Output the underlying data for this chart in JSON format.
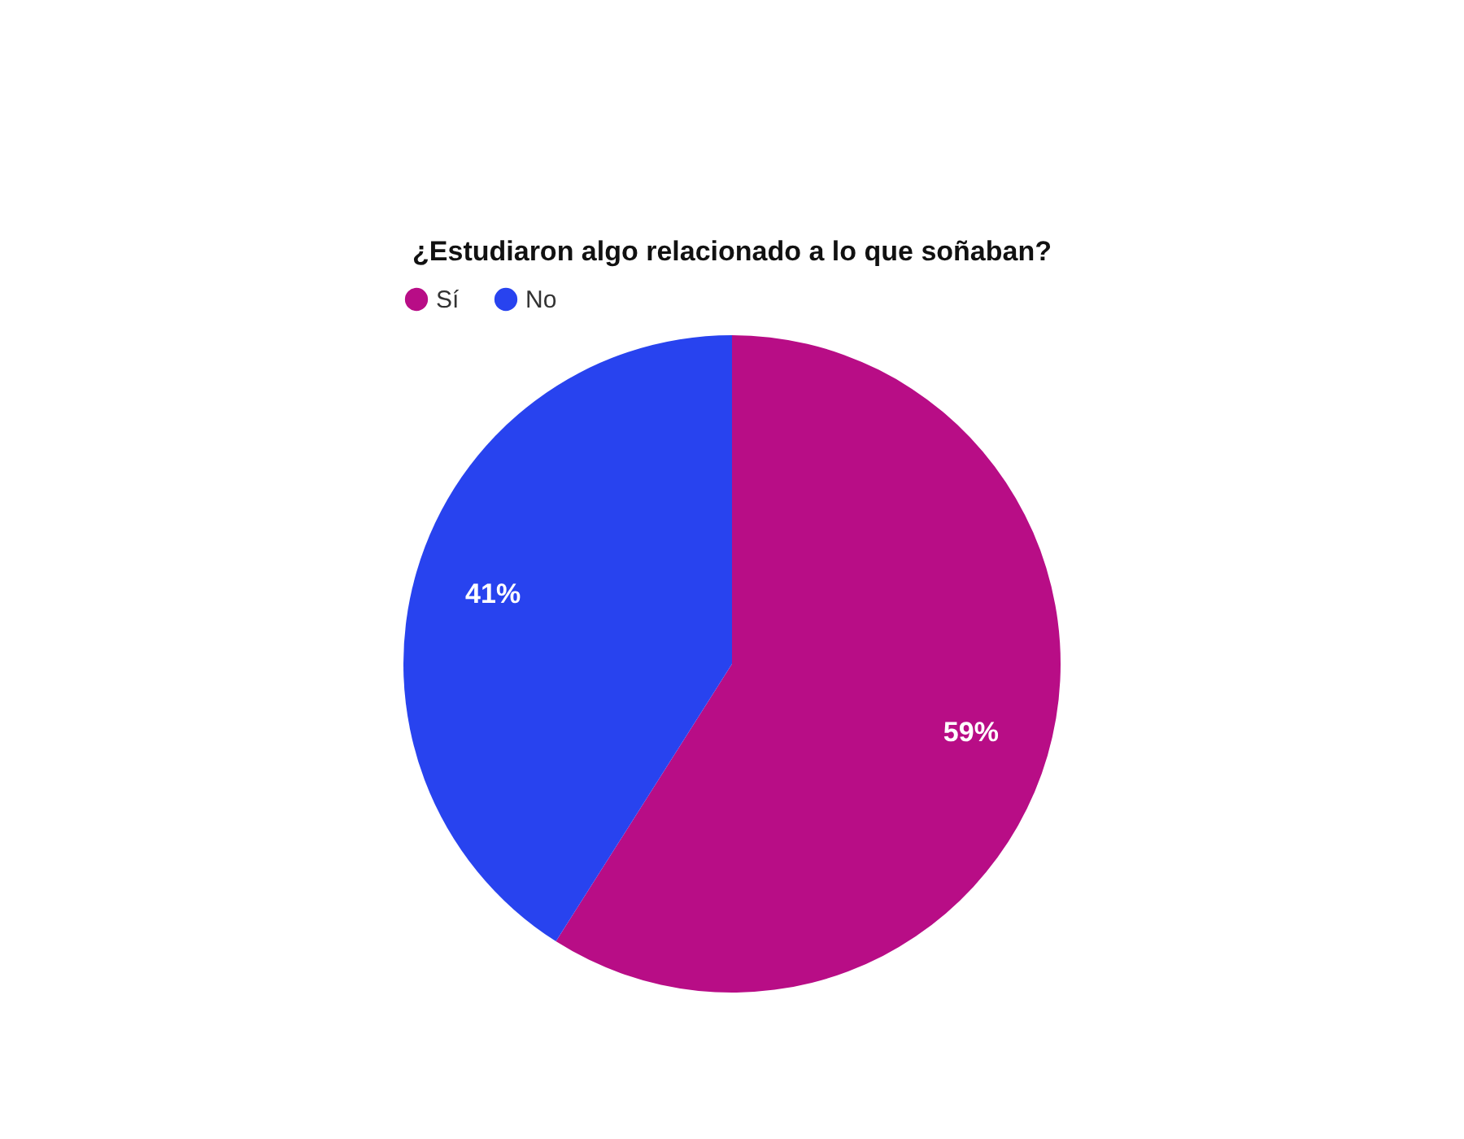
{
  "chart_data": {
    "type": "pie",
    "title": "¿Estudiaron algo relacionado a lo que soñaban?",
    "categories": [
      "Sí",
      "No"
    ],
    "values": [
      59,
      41
    ],
    "colors": [
      "#b80d86",
      "#2843ef"
    ],
    "value_labels": [
      "59%",
      "41%"
    ],
    "legend": "top"
  }
}
